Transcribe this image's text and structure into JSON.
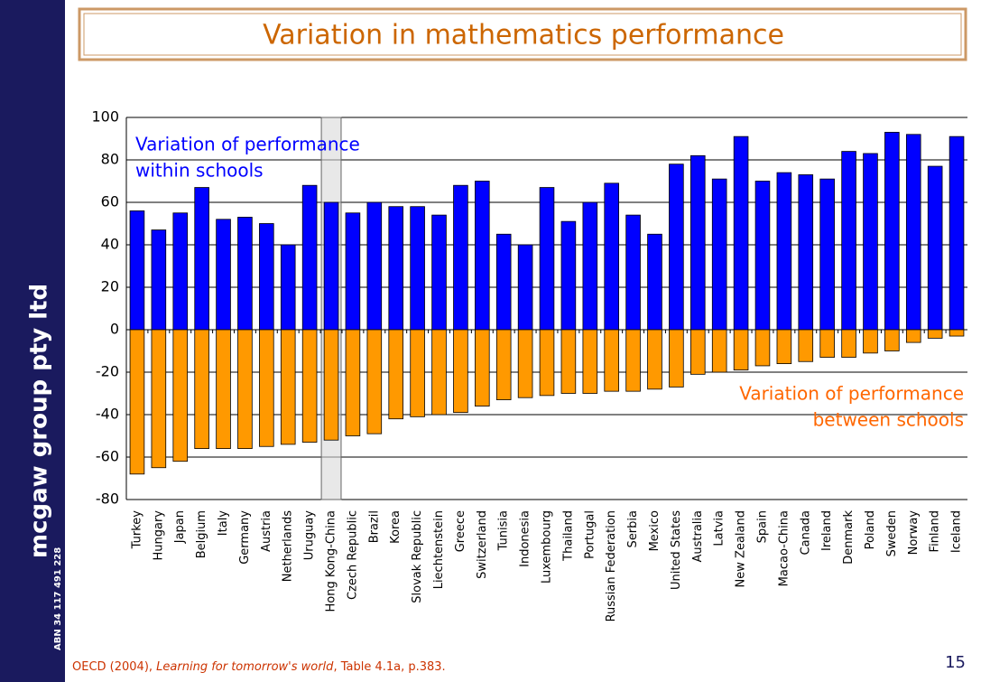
{
  "sidebar": {
    "company": "mcgaw group pty ltd",
    "abn": "ABN 34 117 491 228"
  },
  "chart_data": {
    "type": "bar",
    "title": "Variation in mathematics performance",
    "categories": [
      "Turkey",
      "Hungary",
      "Japan",
      "Belgium",
      "Italy",
      "Germany",
      "Austria",
      "Netherlands",
      "Uruguay",
      "Hong Kong-China",
      "Czech Republic",
      "Brazil",
      "Korea",
      "Slovak Republic",
      "Liechtenstein",
      "Greece",
      "Switzerland",
      "Tunisia",
      "Indonesia",
      "Luxembourg",
      "Thailand",
      "Portugal",
      "Russian Federation",
      "Serbia",
      "Mexico",
      "United States",
      "Australia",
      "Latvia",
      "New Zealand",
      "Spain",
      "Macao-China",
      "Canada",
      "Ireland",
      "Denmark",
      "Poland",
      "Sweden",
      "Norway",
      "Finland",
      "Iceland"
    ],
    "series": [
      {
        "color": "#0000ff",
        "values": [
          56,
          47,
          55,
          67,
          52,
          53,
          50,
          40,
          68,
          60,
          55,
          60,
          58,
          58,
          54,
          68,
          70,
          45,
          40,
          67,
          51,
          60,
          69,
          54,
          45,
          78,
          82,
          71,
          91,
          70,
          74,
          73,
          71,
          84,
          83,
          93,
          92,
          77,
          91
        ]
      },
      {
        "color": "#ff9900",
        "values": [
          -68,
          -65,
          -62,
          -56,
          -56,
          -56,
          -55,
          -54,
          -53,
          -52,
          -50,
          -49,
          -42,
          -41,
          -40,
          -39,
          -36,
          -33,
          -32,
          -31,
          -30,
          -30,
          -29,
          -29,
          -28,
          -27,
          -21,
          -20,
          -19,
          -17,
          -16,
          -15,
          -13,
          -13,
          -11,
          -10,
          -6,
          -4,
          -3
        ]
      }
    ],
    "annotations": [
      {
        "color": "#0000ff",
        "lines": [
          "Variation of performance",
          "within schools"
        ]
      },
      {
        "color": "#ff6600",
        "lines": [
          "Variation of  performance",
          "between schools"
        ]
      }
    ],
    "highlight_category": 9,
    "ylim": [
      -80,
      100
    ],
    "yticks": [
      100,
      80,
      60,
      40,
      20,
      0,
      -20,
      -40,
      -60,
      -80
    ],
    "grid": true
  },
  "footer": {
    "source_pre": "OECD (2004), ",
    "source_title": "Learning for tomorrow's world",
    "source_post": ", Table 4.1a, p.383.",
    "page": "15"
  }
}
